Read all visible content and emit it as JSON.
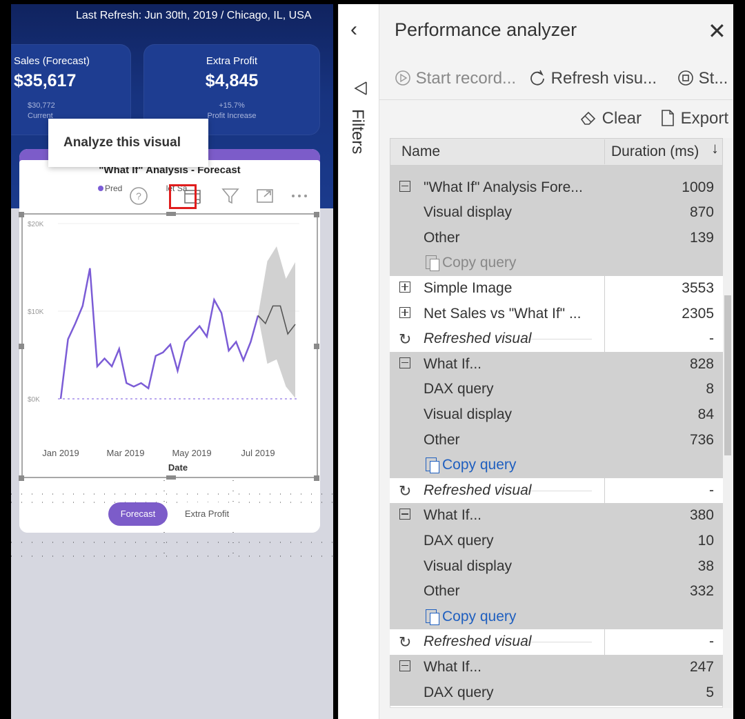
{
  "report": {
    "refresh_text": "Last Refresh: Jun 30th, 2019 / Chicago, IL, USA",
    "kpis": [
      {
        "title": "Sales (Forecast)",
        "value": "$35,617",
        "sub1": "$30,772",
        "sub2": "Current"
      },
      {
        "title": "Extra Profit",
        "value": "$4,845",
        "sub1": "+15.7%",
        "sub2": "Profit Increase"
      }
    ],
    "chart_title": "\"What If\" Analysis - Forecast",
    "legend_label": "Pred",
    "legend_label2": "let Sa",
    "tooltip": "Analyze this visual",
    "x_axis_label": "Date",
    "pills": [
      "Forecast",
      "Extra Profit"
    ],
    "accent": "#7c5cc9"
  },
  "chart_data": {
    "type": "line",
    "title": "\"What If\" Analysis - Forecast",
    "xlabel": "Date",
    "ylabel": "",
    "y_ticks": [
      "$0K",
      "$10K",
      "$20K"
    ],
    "x_ticks": [
      "Jan 2019",
      "Mar 2019",
      "May 2019",
      "Jul 2019"
    ],
    "ylim": [
      0,
      20
    ],
    "series": [
      {
        "name": "Pred",
        "color": "#7b5cd6",
        "values": [
          0,
          6.8,
          8.6,
          10.6,
          14.9,
          3.7,
          4.6,
          3.7,
          5.7,
          1.8,
          1.4,
          1.8,
          1.2,
          4.9,
          5.3,
          6.2,
          3.2,
          6.5,
          7.4,
          8.3,
          7.1,
          11.3,
          9.8,
          5.5,
          6.5,
          4.4,
          6.5,
          9.5
        ]
      },
      {
        "name": "",
        "color": "#555555",
        "values": [
          9.5,
          8.6,
          10.6,
          10.6,
          7.4,
          8.5
        ]
      }
    ],
    "forecast_band": {
      "upper": [
        9.5,
        15.7,
        17.4,
        13.7,
        15.6
      ],
      "lower": [
        9.5,
        4.0,
        4.5,
        1.4,
        0.1
      ]
    },
    "grid": true
  },
  "filters": {
    "label": "Filters"
  },
  "pa": {
    "title": "Performance analyzer",
    "toolbar": {
      "start": "Start record...",
      "refresh": "Refresh visu...",
      "stop": "St...",
      "clear": "Clear",
      "export": "Export"
    },
    "columns": {
      "name": "Name",
      "duration": "Duration (ms)"
    },
    "rows": [
      {
        "name": "\"What If\" Analysis Fore...",
        "dur": "1009"
      },
      {
        "name": "Visual display",
        "dur": "870"
      },
      {
        "name": "Other",
        "dur": "139"
      },
      {
        "name": "Copy query",
        "dur": ""
      },
      {
        "name": "Simple Image",
        "dur": "3553"
      },
      {
        "name": "Net Sales vs \"What If\" ...",
        "dur": "2305"
      },
      {
        "name": "Refreshed visual",
        "dur": "-"
      },
      {
        "name": "What If...",
        "dur": "828"
      },
      {
        "name": "DAX query",
        "dur": "8"
      },
      {
        "name": "Visual display",
        "dur": "84"
      },
      {
        "name": "Other",
        "dur": "736"
      },
      {
        "name": "Copy query",
        "dur": ""
      },
      {
        "name": "Refreshed visual",
        "dur": "-"
      },
      {
        "name": "What If...",
        "dur": "380"
      },
      {
        "name": "DAX query",
        "dur": "10"
      },
      {
        "name": "Visual display",
        "dur": "38"
      },
      {
        "name": "Other",
        "dur": "332"
      },
      {
        "name": "Copy query",
        "dur": ""
      },
      {
        "name": "Refreshed visual",
        "dur": "-"
      },
      {
        "name": "What If...",
        "dur": "247"
      },
      {
        "name": "DAX query",
        "dur": "5"
      }
    ]
  }
}
